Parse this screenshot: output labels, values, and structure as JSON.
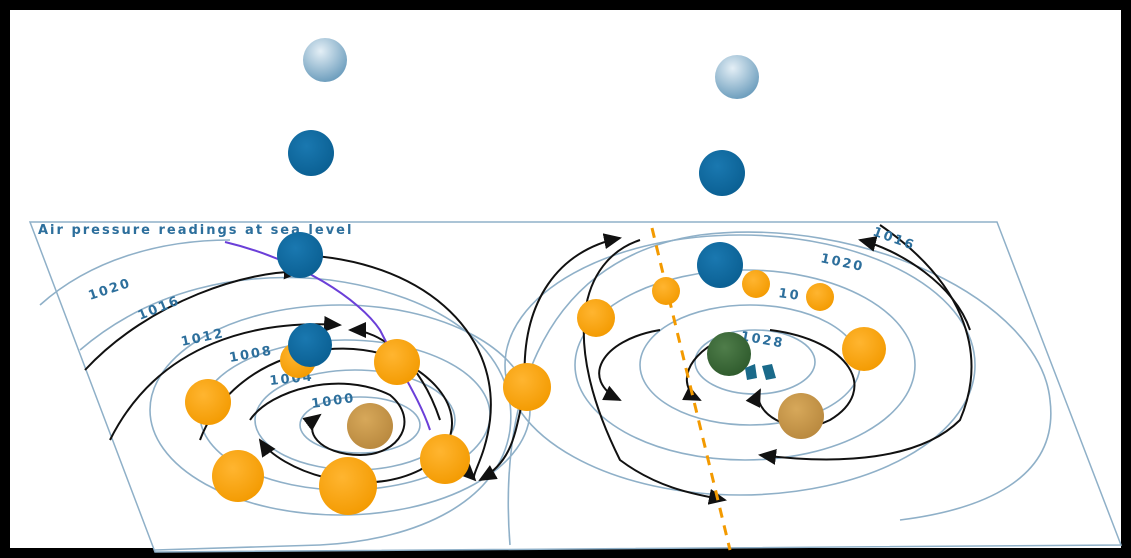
{
  "title": "Air pressure readings at sea level",
  "left_isobars": [
    "1020",
    "1016",
    "1012",
    "1008",
    "1004",
    "1000"
  ],
  "right_isobars": [
    "1016",
    "1020",
    "10",
    "1028"
  ]
}
